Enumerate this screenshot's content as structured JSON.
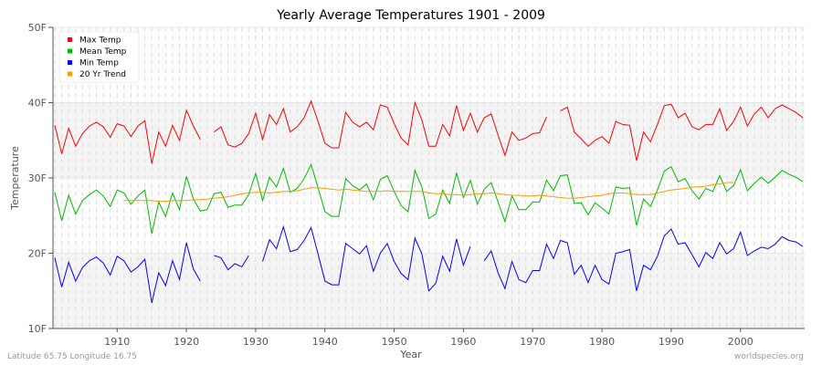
{
  "chart_data": {
    "type": "line",
    "title": "Yearly Average Temperatures 1901 - 2009",
    "xlabel": "Year",
    "ylabel": "Temperature",
    "xlim": [
      1901,
      2009
    ],
    "ylim": [
      10,
      50
    ],
    "x_ticks": [
      1910,
      1920,
      1930,
      1940,
      1950,
      1960,
      1970,
      1980,
      1990,
      2000
    ],
    "y_ticks": [
      {
        "value": 10,
        "label": "10F"
      },
      {
        "value": 20,
        "label": "20F"
      },
      {
        "value": 30,
        "label": "30F"
      },
      {
        "value": 40,
        "label": "40F"
      },
      {
        "value": 50,
        "label": "50F"
      }
    ],
    "grid": true,
    "legend_position": "top-left",
    "x_start": 1901,
    "series": [
      {
        "name": "Max Temp",
        "color": "#ff0000",
        "start": 1901,
        "values": [
          37.0,
          33.2,
          36.6,
          34.2,
          35.9,
          36.9,
          37.4,
          36.8,
          35.4,
          37.2,
          36.9,
          35.5,
          36.9,
          37.6,
          31.9,
          36.1,
          34.2,
          37.0,
          35.0,
          39.0,
          36.9,
          35.1,
          null,
          36.1,
          36.8,
          34.4,
          34.1,
          34.6,
          35.9,
          38.6,
          35.1,
          38.4,
          37.1,
          39.2,
          36.1,
          36.8,
          38.0,
          40.2,
          37.5,
          34.6,
          34.0,
          34.0,
          38.7,
          37.4,
          36.8,
          37.4,
          36.4,
          39.7,
          39.4,
          37.2,
          35.3,
          34.4,
          40.0,
          37.7,
          34.2,
          34.2,
          37.1,
          35.6,
          39.6,
          36.3,
          38.6,
          36.1,
          38.0,
          38.5,
          35.7,
          33.0,
          36.1,
          35.0,
          35.3,
          35.9,
          36.0,
          38.1,
          null,
          38.9,
          39.4,
          36.1,
          35.2,
          34.2,
          35.0,
          35.5,
          34.6,
          37.5,
          37.1,
          37.0,
          32.3,
          36.1,
          34.8,
          37.1,
          39.6,
          39.8,
          38.0,
          38.6,
          36.8,
          36.4,
          37.1,
          37.1,
          39.2,
          36.3,
          37.5,
          39.4,
          36.9,
          38.5,
          39.4,
          38.0,
          39.2,
          39.7,
          39.2,
          38.7,
          38.0
        ]
      },
      {
        "name": "Mean Temp",
        "color": "#00bb00",
        "start": 1901,
        "values": [
          28.1,
          24.3,
          27.7,
          25.2,
          27.0,
          27.8,
          28.4,
          27.6,
          26.2,
          28.4,
          28.0,
          26.5,
          27.6,
          28.4,
          22.6,
          26.8,
          24.9,
          28.0,
          25.8,
          30.2,
          27.2,
          25.6,
          25.8,
          27.9,
          28.1,
          26.1,
          26.4,
          26.4,
          27.8,
          30.6,
          27.0,
          30.1,
          28.8,
          31.3,
          28.1,
          28.6,
          29.9,
          31.8,
          28.7,
          25.5,
          24.9,
          24.9,
          29.9,
          29.0,
          28.4,
          29.2,
          27.1,
          29.8,
          30.3,
          28.2,
          26.3,
          25.5,
          31.0,
          28.8,
          24.6,
          25.2,
          28.4,
          26.6,
          30.7,
          27.4,
          29.7,
          26.5,
          28.5,
          29.4,
          26.8,
          24.2,
          27.6,
          25.8,
          25.8,
          26.8,
          26.8,
          29.7,
          28.3,
          30.3,
          30.4,
          26.6,
          26.7,
          25.1,
          26.7,
          26.0,
          25.2,
          28.8,
          28.6,
          28.7,
          23.7,
          27.2,
          26.2,
          28.4,
          30.9,
          31.5,
          29.5,
          29.9,
          28.3,
          27.2,
          28.6,
          28.2,
          30.3,
          28.2,
          29.0,
          31.1,
          28.3,
          29.3,
          30.1,
          29.3,
          30.1,
          31.0,
          30.5,
          30.1,
          29.5
        ]
      },
      {
        "name": "Min Temp",
        "color": "#0000ff",
        "start": 1901,
        "values": [
          19.4,
          15.5,
          18.8,
          16.3,
          18.1,
          19.0,
          19.5,
          18.7,
          17.1,
          19.6,
          19.0,
          17.5,
          18.2,
          19.2,
          13.4,
          17.4,
          15.7,
          19.0,
          16.5,
          21.4,
          17.9,
          16.3,
          null,
          19.7,
          19.4,
          17.8,
          18.6,
          18.2,
          19.7,
          null,
          18.9,
          21.8,
          20.6,
          23.5,
          20.2,
          20.5,
          21.7,
          23.4,
          19.9,
          16.3,
          15.8,
          15.8,
          21.3,
          20.6,
          19.9,
          21.0,
          17.6,
          20.0,
          21.3,
          18.9,
          17.3,
          16.5,
          22.0,
          19.9,
          15.0,
          16.0,
          19.6,
          17.6,
          21.9,
          18.4,
          20.9,
          null,
          19.0,
          20.3,
          17.4,
          15.3,
          18.9,
          16.5,
          16.1,
          17.7,
          17.7,
          21.2,
          19.3,
          21.7,
          21.4,
          17.2,
          18.4,
          16.1,
          18.4,
          16.5,
          15.9,
          20.0,
          20.2,
          20.5,
          15.0,
          18.4,
          17.8,
          19.6,
          22.3,
          23.2,
          21.2,
          21.4,
          19.8,
          18.2,
          20.1,
          19.3,
          21.4,
          19.9,
          20.6,
          22.8,
          19.7,
          20.3,
          20.8,
          20.6,
          21.2,
          22.2,
          21.7,
          21.5,
          20.9
        ]
      },
      {
        "name": "20 Yr Trend",
        "color": "#ff9900",
        "start": 1911,
        "values": [
          27.0,
          27.0,
          27.0,
          27.0,
          27.0,
          26.9,
          26.9,
          27.0,
          27.0,
          27.0,
          27.1,
          27.1,
          27.2,
          27.3,
          27.4,
          27.5,
          27.7,
          27.9,
          28.0,
          28.1,
          28.1,
          28.0,
          28.1,
          28.2,
          28.2,
          28.3,
          28.5,
          28.7,
          28.7,
          28.6,
          28.5,
          28.4,
          28.5,
          28.4,
          28.3,
          28.2,
          28.2,
          28.2,
          28.3,
          28.2,
          28.2,
          28.2,
          28.2,
          28.2,
          28.0,
          27.9,
          27.9,
          27.8,
          27.8,
          27.7,
          27.8,
          27.9,
          27.9,
          28.0,
          27.9,
          27.8,
          27.7,
          27.7,
          27.6,
          27.6,
          27.7,
          27.6,
          27.5,
          27.4,
          27.3,
          27.3,
          27.4,
          27.5,
          27.6,
          27.7,
          27.9,
          28.0,
          28.0,
          27.9,
          27.8,
          27.8,
          27.8,
          28.0,
          28.2,
          28.4,
          28.5,
          28.6,
          28.8,
          28.8,
          28.9,
          29.1,
          29.2,
          29.4,
          29.4
        ]
      }
    ]
  },
  "footer": {
    "location": "Latitude 65.75 Longitude 16.75",
    "source": "worldspecies.org"
  }
}
